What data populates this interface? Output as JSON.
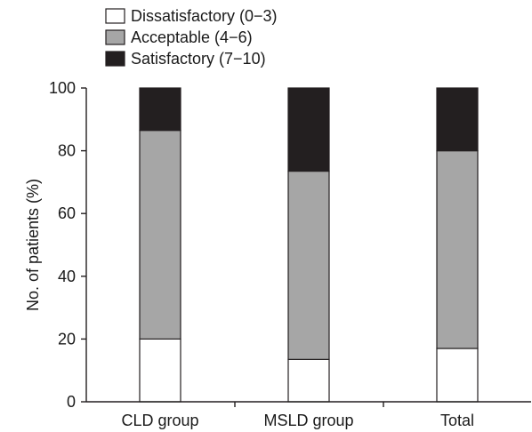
{
  "chart_data": {
    "type": "bar",
    "stacked": true,
    "categories": [
      "CLD group",
      "MSLD group",
      "Total"
    ],
    "series": [
      {
        "name": "Dissatisfactory (0−3)",
        "values": [
          20,
          13.5,
          17
        ],
        "color": "#ffffff"
      },
      {
        "name": "Acceptable (4−6)",
        "values": [
          66.5,
          60,
          63
        ],
        "color": "#a6a6a6"
      },
      {
        "name": "Satisfactory (7−10)",
        "values": [
          13.5,
          26.5,
          20
        ],
        "color": "#231f20"
      }
    ],
    "title": "",
    "xlabel": "",
    "ylabel": "No. of patients (%)",
    "ylim": [
      0,
      100
    ],
    "yticks": [
      0,
      20,
      40,
      60,
      80,
      100
    ],
    "grid": false,
    "legend_position": "top-left"
  }
}
